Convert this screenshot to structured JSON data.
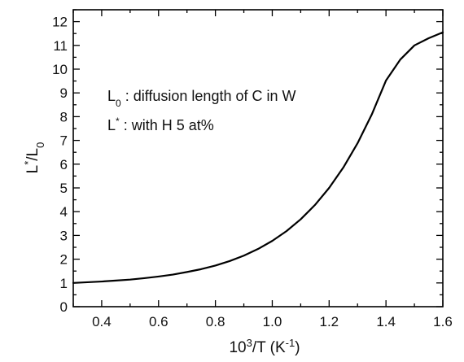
{
  "chart_data": {
    "type": "line",
    "title": "",
    "xlabel": {
      "main": "10",
      "sup": "3",
      "rest": "/T (K",
      "sup2": "-1",
      "close": ")"
    },
    "ylabel": {
      "main": "L",
      "sup": "*",
      "mid": "/L",
      "sub": "0"
    },
    "xlim": [
      0.3,
      1.6
    ],
    "ylim": [
      0,
      12.5
    ],
    "xticks": [
      0.4,
      0.6,
      0.8,
      1.0,
      1.2,
      1.4,
      1.6
    ],
    "xtick_labels": [
      "0.4",
      "0.6",
      "0.8",
      "1.0",
      "1.2",
      "1.4",
      "1.6"
    ],
    "yticks": [
      0,
      1,
      2,
      3,
      4,
      5,
      6,
      7,
      8,
      9,
      10,
      11,
      12
    ],
    "ytick_labels": [
      "0",
      "1",
      "2",
      "3",
      "4",
      "5",
      "6",
      "7",
      "8",
      "9",
      "10",
      "11",
      "12"
    ],
    "grid": false,
    "line_color": "#000000",
    "series": [
      {
        "x": [
          0.3,
          0.35,
          0.4,
          0.45,
          0.5,
          0.55,
          0.6,
          0.65,
          0.7,
          0.75,
          0.8,
          0.85,
          0.9,
          0.95,
          1.0,
          1.05,
          1.1,
          1.15,
          1.2,
          1.25,
          1.3,
          1.35,
          1.4,
          1.45,
          1.5,
          1.55,
          1.6
        ],
        "y": [
          1.0,
          1.03,
          1.06,
          1.1,
          1.14,
          1.2,
          1.27,
          1.35,
          1.46,
          1.58,
          1.73,
          1.92,
          2.15,
          2.43,
          2.77,
          3.18,
          3.68,
          4.28,
          5.0,
          5.86,
          6.88,
          8.09,
          9.52,
          10.4,
          11.0,
          11.3,
          11.55
        ]
      }
    ],
    "annotations": [
      {
        "main": "L",
        "sub": "0",
        "text": " : diffusion length of C in W"
      },
      {
        "main": "L",
        "sup": "*",
        "text": " : with H 5 at%"
      }
    ]
  }
}
